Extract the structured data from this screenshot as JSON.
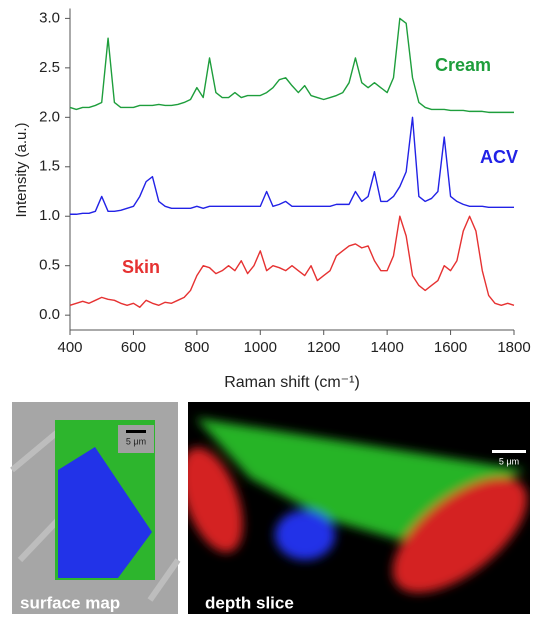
{
  "chart_data": {
    "type": "line",
    "xlabel": "Raman shift (cm⁻¹)",
    "ylabel": "Intensity (a.u.)",
    "xlim": [
      400,
      1800
    ],
    "ylim": [
      -0.15,
      3.1
    ],
    "xticks": [
      400,
      600,
      800,
      1000,
      1200,
      1400,
      1600,
      1800
    ],
    "yticks": [
      {
        "value": 0,
        "label": "0.0"
      },
      0.5,
      {
        "value": 1,
        "label": "1.0"
      },
      1.5,
      {
        "value": 2,
        "label": "2.0"
      },
      2.5,
      {
        "value": 3,
        "label": "3.0"
      }
    ],
    "x": [
      400,
      420,
      440,
      460,
      480,
      500,
      520,
      540,
      560,
      580,
      600,
      620,
      640,
      660,
      680,
      700,
      720,
      740,
      760,
      780,
      800,
      820,
      840,
      860,
      880,
      900,
      920,
      940,
      960,
      980,
      1000,
      1020,
      1040,
      1060,
      1080,
      1100,
      1120,
      1140,
      1160,
      1180,
      1200,
      1220,
      1240,
      1260,
      1280,
      1300,
      1320,
      1340,
      1360,
      1380,
      1400,
      1420,
      1440,
      1460,
      1480,
      1500,
      1520,
      1540,
      1560,
      1580,
      1600,
      1620,
      1640,
      1660,
      1680,
      1700,
      1720,
      1740,
      1760,
      1780,
      1800
    ],
    "series": [
      {
        "name": "Cream",
        "color": "#1e9e3c",
        "values": [
          2.1,
          2.08,
          2.1,
          2.1,
          2.12,
          2.15,
          2.8,
          2.15,
          2.1,
          2.1,
          2.1,
          2.12,
          2.12,
          2.12,
          2.13,
          2.12,
          2.12,
          2.13,
          2.15,
          2.18,
          2.3,
          2.2,
          2.6,
          2.25,
          2.2,
          2.2,
          2.25,
          2.2,
          2.22,
          2.22,
          2.22,
          2.25,
          2.3,
          2.38,
          2.4,
          2.32,
          2.25,
          2.32,
          2.22,
          2.2,
          2.18,
          2.2,
          2.22,
          2.25,
          2.35,
          2.6,
          2.35,
          2.3,
          2.35,
          2.3,
          2.25,
          2.4,
          3.0,
          2.95,
          2.4,
          2.15,
          2.1,
          2.08,
          2.08,
          2.08,
          2.07,
          2.07,
          2.07,
          2.06,
          2.06,
          2.06,
          2.05,
          2.05,
          2.05,
          2.05,
          2.05
        ]
      },
      {
        "name": "ACV",
        "color": "#2222e6",
        "values": [
          1.02,
          1.02,
          1.03,
          1.03,
          1.05,
          1.2,
          1.05,
          1.05,
          1.06,
          1.08,
          1.1,
          1.2,
          1.35,
          1.4,
          1.15,
          1.1,
          1.08,
          1.08,
          1.08,
          1.08,
          1.1,
          1.08,
          1.1,
          1.1,
          1.1,
          1.1,
          1.1,
          1.1,
          1.1,
          1.1,
          1.1,
          1.25,
          1.1,
          1.12,
          1.15,
          1.1,
          1.1,
          1.1,
          1.1,
          1.1,
          1.1,
          1.1,
          1.12,
          1.12,
          1.12,
          1.25,
          1.15,
          1.2,
          1.45,
          1.15,
          1.15,
          1.2,
          1.3,
          1.45,
          2.0,
          1.2,
          1.15,
          1.18,
          1.25,
          1.8,
          1.2,
          1.15,
          1.12,
          1.1,
          1.1,
          1.1,
          1.09,
          1.09,
          1.09,
          1.09,
          1.09
        ]
      },
      {
        "name": "Skin",
        "color": "#e63232",
        "values": [
          0.1,
          0.12,
          0.14,
          0.12,
          0.15,
          0.18,
          0.16,
          0.15,
          0.12,
          0.1,
          0.12,
          0.08,
          0.15,
          0.12,
          0.1,
          0.13,
          0.12,
          0.15,
          0.18,
          0.25,
          0.4,
          0.5,
          0.48,
          0.42,
          0.45,
          0.5,
          0.45,
          0.55,
          0.42,
          0.5,
          0.65,
          0.45,
          0.5,
          0.48,
          0.45,
          0.5,
          0.45,
          0.4,
          0.5,
          0.35,
          0.4,
          0.45,
          0.6,
          0.65,
          0.7,
          0.72,
          0.68,
          0.7,
          0.55,
          0.45,
          0.45,
          0.6,
          1.0,
          0.8,
          0.4,
          0.3,
          0.25,
          0.3,
          0.35,
          0.5,
          0.45,
          0.55,
          0.85,
          1.0,
          0.85,
          0.45,
          0.2,
          0.12,
          0.1,
          0.12,
          0.1
        ]
      }
    ]
  },
  "images": {
    "surface_map": {
      "label": "surface map",
      "scale_bar": "5 μm"
    },
    "depth_slice": {
      "label": "depth slice",
      "scale_bar": "5 μm"
    }
  }
}
